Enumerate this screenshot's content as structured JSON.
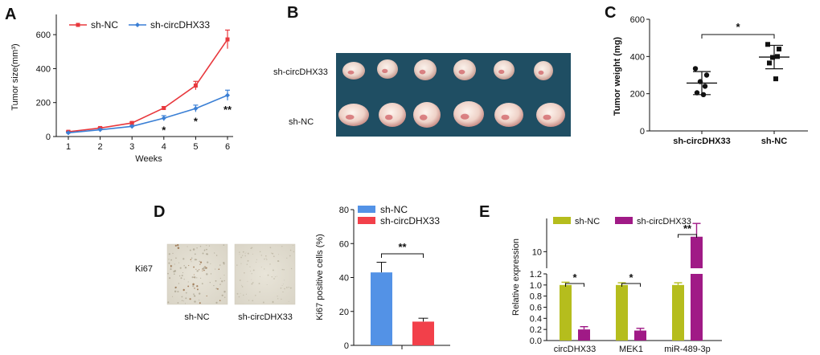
{
  "panels": {
    "A": "A",
    "B": "B",
    "C": "C",
    "D": "D",
    "E": "E"
  },
  "colors": {
    "sh_nc_line": "#e8383d",
    "sh_circ_line": "#3a7fd5",
    "bar_blue": "#5392e6",
    "bar_red": "#f2404a",
    "bar_olive": "#b5bd1d",
    "bar_purple": "#a01a86"
  },
  "panel_b": {
    "row_top_label": "sh-circDHX33",
    "row_bottom_label": "sh-NC"
  },
  "panel_d_images": {
    "row_label": "Ki67",
    "left_caption": "sh-NC",
    "right_caption": "sh-circDHX33"
  },
  "chart_data": [
    {
      "id": "A",
      "type": "line",
      "xlabel": "Weeks",
      "ylabel": "Tumor size(mm³)",
      "x": [
        1,
        2,
        3,
        4,
        5,
        6
      ],
      "ylim": [
        0,
        700
      ],
      "yticks": [
        0,
        200,
        400,
        600
      ],
      "legend_position": "top-left",
      "series": [
        {
          "name": "sh-NC",
          "values": [
            28,
            50,
            80,
            168,
            300,
            572
          ],
          "errors": [
            4,
            5,
            6,
            8,
            25,
            55
          ]
        },
        {
          "name": "sh-circDHX33",
          "values": [
            22,
            40,
            60,
            108,
            165,
            243
          ],
          "errors": [
            4,
            5,
            5,
            15,
            20,
            30
          ]
        }
      ],
      "annotations": [
        {
          "x": 4,
          "text": "*"
        },
        {
          "x": 5,
          "text": "*"
        },
        {
          "x": 6,
          "text": "**"
        }
      ]
    },
    {
      "id": "C",
      "type": "scatter",
      "ylabel": "Tumor weight (mg)",
      "categories": [
        "sh-circDHX33",
        "sh-NC"
      ],
      "ylim": [
        0,
        600
      ],
      "yticks": [
        0,
        200,
        400,
        600
      ],
      "points": [
        [
          335,
          300,
          265,
          240,
          205,
          195
        ],
        [
          465,
          440,
          395,
          400,
          365,
          280
        ]
      ],
      "means": [
        257,
        397
      ],
      "sd": [
        62,
        63
      ],
      "annotations": [
        {
          "text": "*"
        }
      ]
    },
    {
      "id": "D",
      "type": "bar",
      "ylabel": "Ki67 positive cells (%)",
      "ylim": [
        0,
        80
      ],
      "yticks": [
        0,
        20,
        40,
        60,
        80
      ],
      "legend_position": "top-left",
      "series": [
        {
          "name": "sh-NC",
          "values": [
            43
          ],
          "errors": [
            6
          ]
        },
        {
          "name": "sh-circDHX33",
          "values": [
            14
          ],
          "errors": [
            2
          ]
        }
      ],
      "annotations": [
        {
          "text": "**"
        }
      ]
    },
    {
      "id": "E",
      "type": "bar",
      "ylabel": "Relative expression",
      "categories": [
        "circDHX33",
        "MEK1",
        "miR-489-3p"
      ],
      "yticks_lower": [
        0.0,
        0.2,
        0.4,
        0.6,
        0.8,
        1.0,
        1.2
      ],
      "yticks_upper": [
        10
      ],
      "axis_break": true,
      "legend_position": "top",
      "series": [
        {
          "name": "sh-NC",
          "values": [
            1.0,
            1.0,
            1.0
          ],
          "errors": [
            0.05,
            0.04,
            0.04
          ]
        },
        {
          "name": "sh-circDHX33",
          "values": [
            0.2,
            0.18,
            11.8
          ],
          "errors": [
            0.05,
            0.04,
            1.6
          ]
        }
      ],
      "annotations": [
        {
          "category": "circDHX33",
          "text": "*"
        },
        {
          "category": "MEK1",
          "text": "*"
        },
        {
          "category": "miR-489-3p",
          "text": "**"
        }
      ]
    }
  ]
}
